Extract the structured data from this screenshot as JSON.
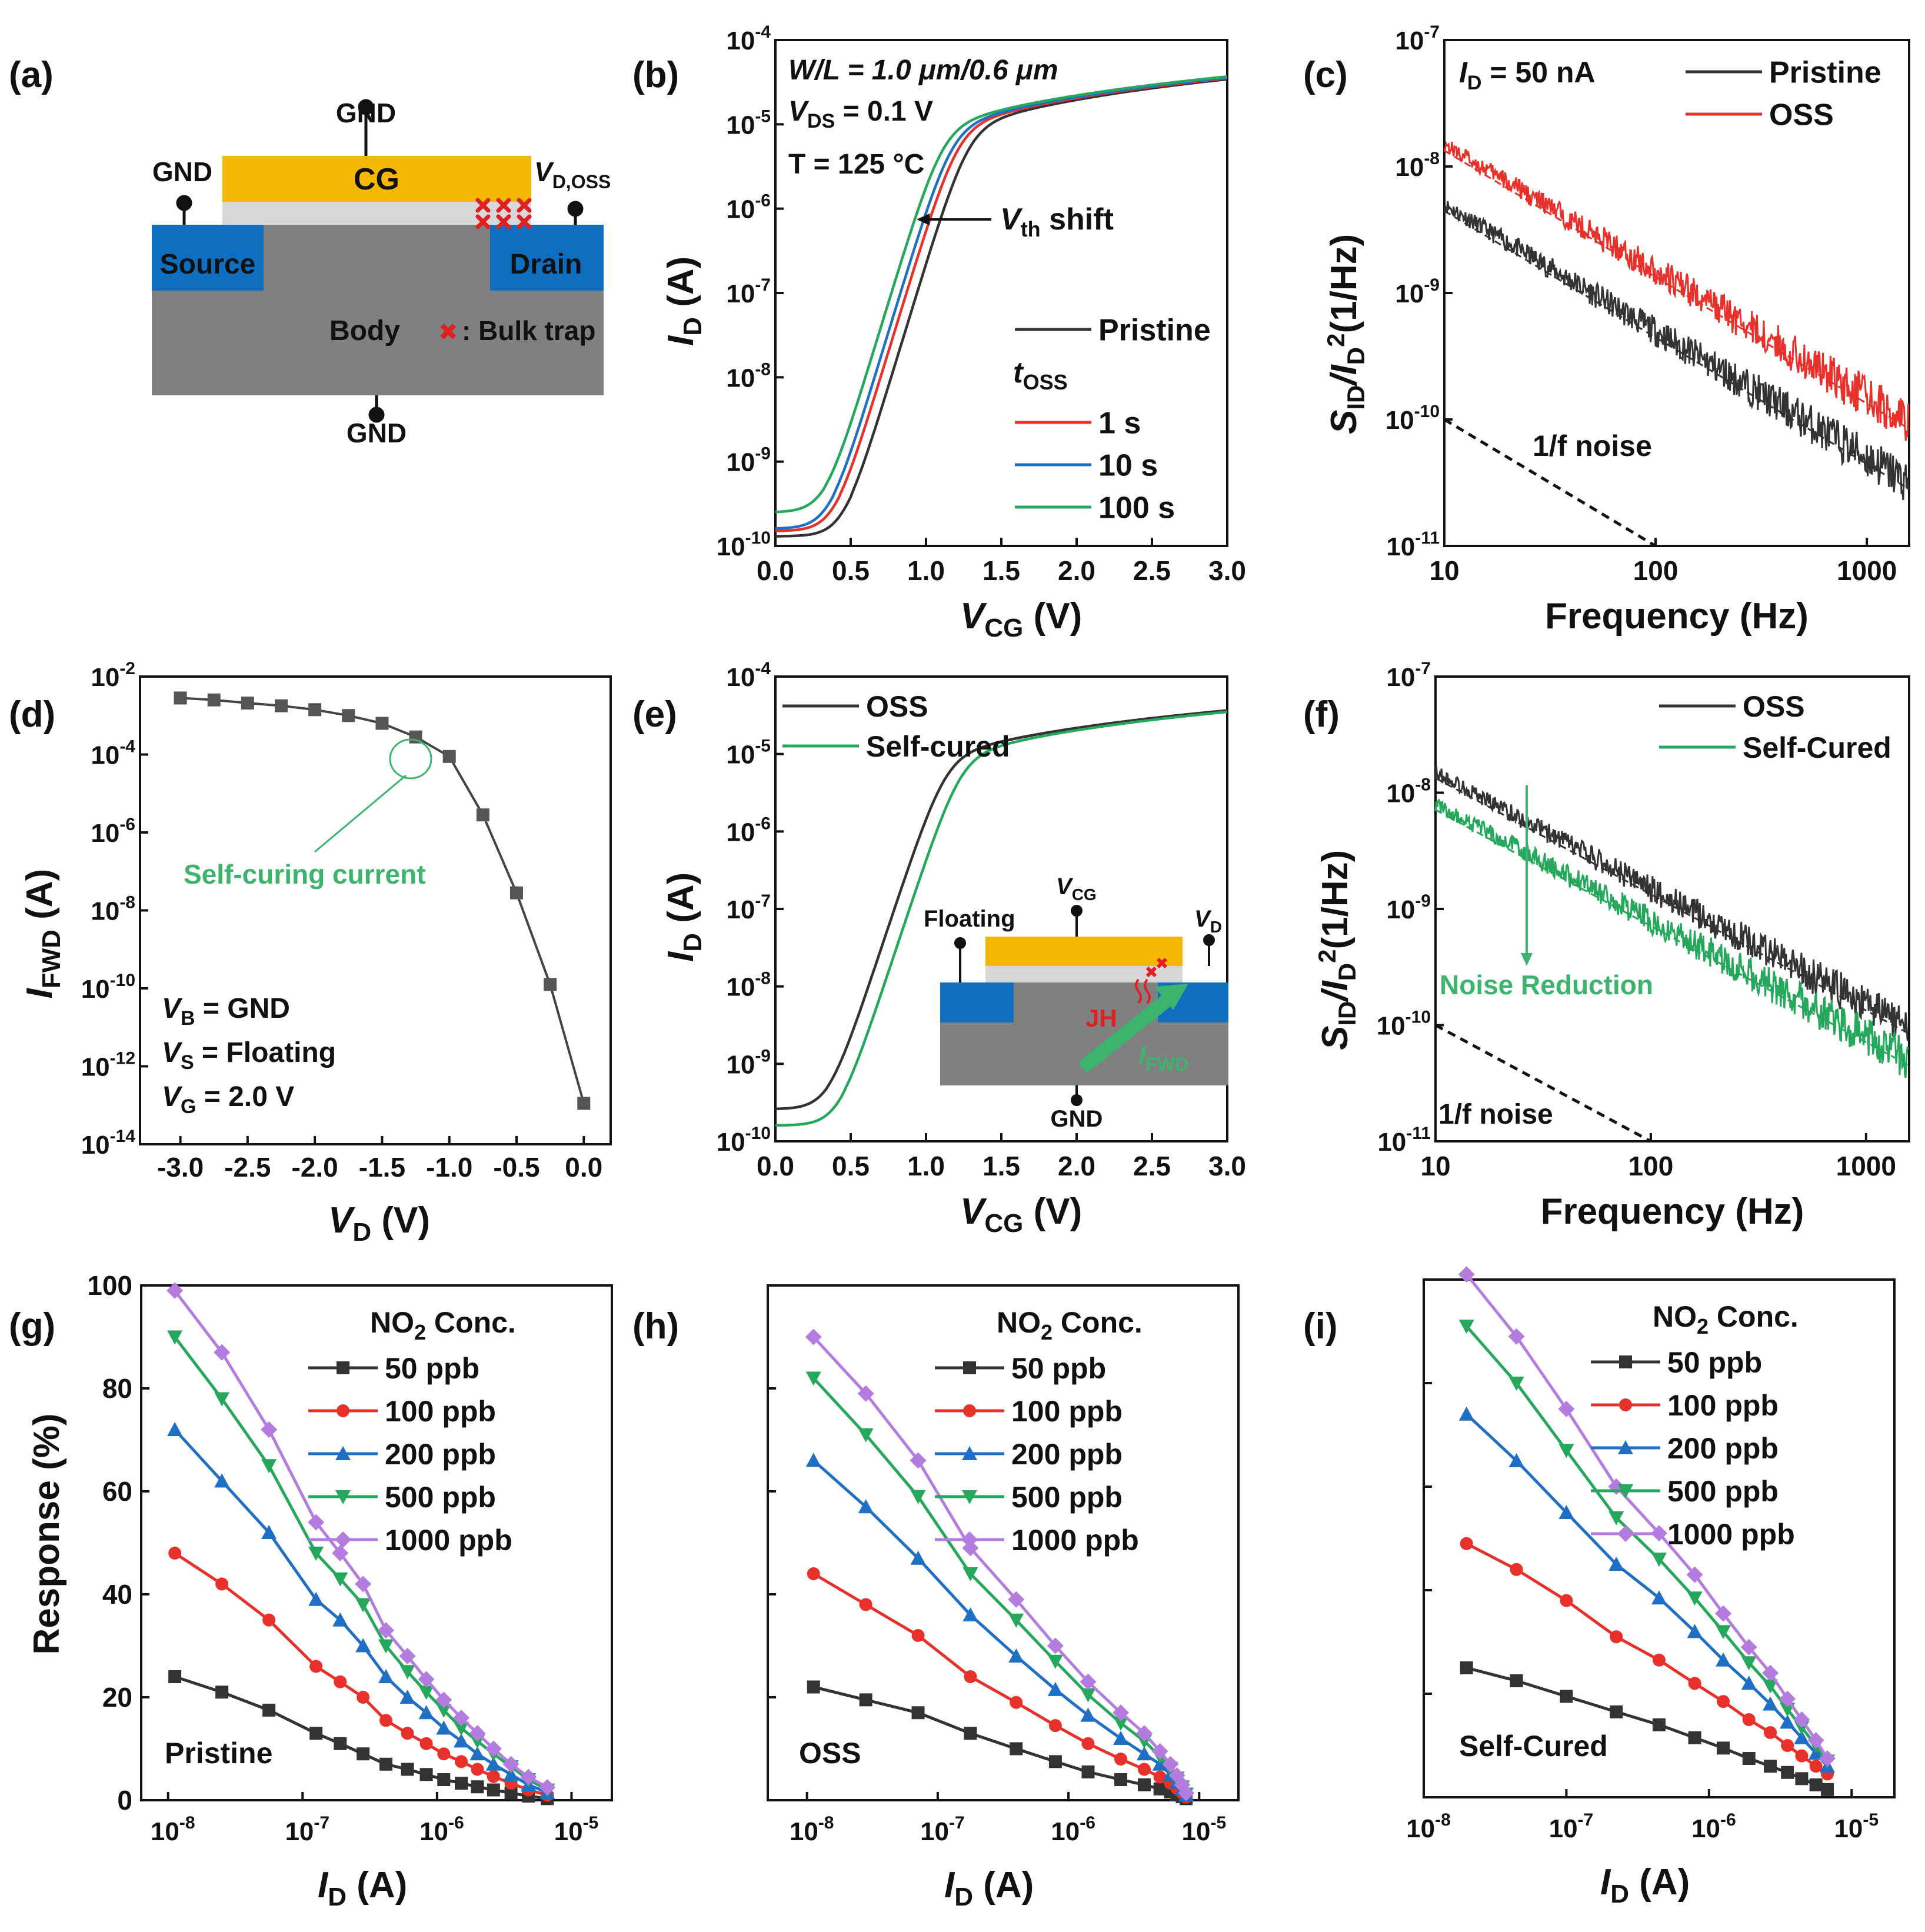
{
  "colors": {
    "black": "#333333",
    "red": "#e8312b",
    "blue": "#1f6fc5",
    "green": "#25a85b",
    "purple": "#b57ce0",
    "gate": "#f5b800",
    "source_drain": "#0e6fc1",
    "body": "#808080",
    "oxide": "#d8d8d8",
    "annot_green": "#3cb46e",
    "annot_red": "#e02020"
  },
  "labels": {
    "a": "(a)",
    "b": "(b)",
    "c": "(c)",
    "d": "(d)",
    "e": "(e)",
    "f": "(f)",
    "g": "(g)",
    "h": "(h)",
    "i": "(i)"
  },
  "panel_a": {
    "gnd_top": "GND",
    "gnd_left": "GND",
    "gnd_bottom": "GND",
    "cg": "CG",
    "vd_oss": "V",
    "vd_oss_sub": "D,OSS",
    "source": "Source",
    "drain": "Drain",
    "body": "Body",
    "trap_marker": "✖",
    "trap_label": ": Bulk trap"
  },
  "panel_e_inset": {
    "floating": "Floating",
    "vcg": "V",
    "vcg_sub": "CG",
    "vd": "V",
    "vd_sub": "D",
    "jh": "JH",
    "ifwd": "I",
    "ifwd_sub": "FWD",
    "gnd": "GND"
  },
  "chart_data": [
    {
      "id": "b",
      "type": "line",
      "xlabel": "V",
      "xlabel_sub": "CG",
      "xlabel_unit": " (V)",
      "ylabel": "I",
      "ylabel_sub": "D",
      "ylabel_unit": " (A)",
      "xlim": [
        0,
        3.0
      ],
      "ylim_log10": [
        -10,
        -4
      ],
      "xticks": [
        "0.0",
        "0.5",
        "1.0",
        "1.5",
        "2.0",
        "2.5",
        "3.0"
      ],
      "yticks": [
        "10",
        "10",
        "10",
        "10",
        "10",
        "10",
        "10"
      ],
      "ytick_exps": [
        "-10",
        "-9",
        "-8",
        "-7",
        "-6",
        "-5",
        "-4"
      ],
      "annotations": {
        "wl": "W/L = 1.0 μm/0.6 μm",
        "vds": "V",
        "vds_sub": "DS",
        "vds_val": " = 0.1 V",
        "temp": "T = 125 °C",
        "vth": "V",
        "vth_sub": "th",
        "vth_val": " shift",
        "toss": "t",
        "toss_sub": "OSS"
      },
      "series": [
        {
          "name": "Pristine",
          "vth": 0.85,
          "leak": 1.3e-10
        },
        {
          "name": "1 s",
          "vth": 0.78,
          "leak": 1.5e-10
        },
        {
          "name": "10 s",
          "vth": 0.74,
          "leak": 1.6e-10
        },
        {
          "name": "100 s",
          "vth": 0.68,
          "leak": 2.5e-10
        }
      ]
    },
    {
      "id": "c",
      "type": "line",
      "xlabel": "Frequency (Hz)",
      "ylabel": "S",
      "ylabel_sub": "ID",
      "ylabel_mid": "/I",
      "ylabel_sub2": "D",
      "ylabel_sup": "2",
      "ylabel_unit": "(1/Hz)",
      "xlim_log10": [
        1,
        3.2
      ],
      "ylim_log10": [
        -11,
        -7
      ],
      "xticks": [
        "10",
        "100",
        "1000"
      ],
      "yticks": [
        "10",
        "10",
        "10",
        "10",
        "10"
      ],
      "ytick_exps": [
        "-11",
        "-10",
        "-9",
        "-8",
        "-7"
      ],
      "annotations": {
        "id": "I",
        "id_sub": "D",
        "id_val": " = 50 nA",
        "noise": "1/f noise"
      },
      "series": [
        {
          "name": "Pristine",
          "level_at_10hz": 5e-09,
          "slope": -1
        },
        {
          "name": "OSS",
          "level_at_10hz": 1.5e-08,
          "slope": -1
        }
      ]
    },
    {
      "id": "d",
      "type": "line",
      "xlabel": "V",
      "xlabel_sub": "D",
      "xlabel_unit": " (V)",
      "ylabel": "I",
      "ylabel_sub": "FWD",
      "ylabel_unit": " (A)",
      "xlim": [
        -3.3,
        0.2
      ],
      "ylim_log10": [
        -14,
        -2
      ],
      "xticks": [
        "-3.0",
        "-2.5",
        "-2.0",
        "-1.5",
        "-1.0",
        "-0.5",
        "0.0"
      ],
      "yticks": [
        "10",
        "10",
        "10",
        "10",
        "10",
        "10",
        "10"
      ],
      "ytick_exps": [
        "-14",
        "-12",
        "-10",
        "-8",
        "-6",
        "-4",
        "-2"
      ],
      "annotations": {
        "self_curing": "Self-curing current",
        "vb": "V",
        "vb_sub": "B",
        "vb_val": " = GND",
        "vs": "V",
        "vs_sub": "S",
        "vs_val": " = Floating",
        "vg": "V",
        "vg_sub": "G",
        "vg_val": " = 2.0 V"
      },
      "x": [
        -3.0,
        -2.75,
        -2.5,
        -2.25,
        -2.0,
        -1.75,
        -1.5,
        -1.25,
        -1.0,
        -0.75,
        -0.5,
        -0.25,
        0.0
      ],
      "y_log10": [
        -2.55,
        -2.6,
        -2.68,
        -2.75,
        -2.85,
        -3.0,
        -3.2,
        -3.55,
        -4.05,
        -5.55,
        -7.55,
        -9.9,
        -12.95
      ]
    },
    {
      "id": "e",
      "type": "line",
      "xlabel": "V",
      "xlabel_sub": "CG",
      "xlabel_unit": " (V)",
      "ylabel": "I",
      "ylabel_sub": "D",
      "ylabel_unit": " (A)",
      "xlim": [
        0,
        3.0
      ],
      "ylim_log10": [
        -10,
        -4
      ],
      "xticks": [
        "0.0",
        "0.5",
        "1.0",
        "1.5",
        "2.0",
        "2.5",
        "3.0"
      ],
      "yticks": [
        "10",
        "10",
        "10",
        "10",
        "10",
        "10",
        "10"
      ],
      "ytick_exps": [
        "-10",
        "-9",
        "-8",
        "-7",
        "-6",
        "-5",
        "-4"
      ],
      "series": [
        {
          "name": "OSS",
          "vth": 0.7,
          "leak": 2.6e-10
        },
        {
          "name": "Self-cured",
          "vth": 0.8,
          "leak": 1.6e-10
        }
      ]
    },
    {
      "id": "f",
      "type": "line",
      "xlabel": "Frequency (Hz)",
      "ylabel": "S",
      "ylabel_sub": "ID",
      "ylabel_mid": "/I",
      "ylabel_sub2": "D",
      "ylabel_sup": "2",
      "ylabel_unit": "(1/Hz)",
      "xlim_log10": [
        1,
        3.2
      ],
      "ylim_log10": [
        -11,
        -7
      ],
      "xticks": [
        "10",
        "100",
        "1000"
      ],
      "yticks": [
        "10",
        "10",
        "10",
        "10",
        "10"
      ],
      "ytick_exps": [
        "-11",
        "-10",
        "-9",
        "-8",
        "-7"
      ],
      "annotations": {
        "noise_reduction": "Noise Reduction",
        "noise": "1/f noise"
      },
      "series": [
        {
          "name": "OSS",
          "level_at_10hz": 1.5e-08,
          "slope": -1
        },
        {
          "name": "Self-Cured",
          "level_at_10hz": 8e-09,
          "slope": -1
        }
      ]
    },
    {
      "id": "g",
      "type": "line",
      "label": "Pristine",
      "xlabel": "I",
      "xlabel_sub": "D",
      "xlabel_unit": " (A)",
      "ylabel": "Response (%)",
      "legend_title": "NO",
      "legend_title_sub": "2",
      "legend_title_rest": " Conc.",
      "xlim_log10": [
        -8.2,
        -4.7
      ],
      "ylim": [
        0,
        100
      ],
      "xticks": [
        "10",
        "10",
        "10",
        "10"
      ],
      "xtick_exps": [
        "-8",
        "-7",
        "-6",
        "-5"
      ],
      "yticks": [
        "0",
        "20",
        "40",
        "60",
        "80",
        "100"
      ],
      "x_log10": [
        -7.95,
        -7.6,
        -7.25,
        -6.9,
        -6.72,
        -6.55,
        -6.38,
        -6.22,
        -6.08,
        -5.95,
        -5.82,
        -5.7,
        -5.58,
        -5.45,
        -5.32,
        -5.18
      ],
      "series": [
        {
          "name": "50 ppb",
          "values": [
            24,
            21,
            17.5,
            13,
            11,
            9,
            7,
            6,
            5,
            4,
            3.3,
            2.6,
            2,
            1.4,
            0.8,
            0.3
          ]
        },
        {
          "name": "100 ppb",
          "values": [
            48,
            42,
            35,
            26,
            23,
            20,
            15.5,
            13,
            11,
            9,
            7.5,
            6,
            4.6,
            3.3,
            2,
            1
          ]
        },
        {
          "name": "200 ppb",
          "values": [
            72,
            62,
            52,
            39,
            35,
            30,
            24,
            20,
            17,
            14,
            11.5,
            9,
            7,
            5,
            3,
            1.5
          ]
        },
        {
          "name": "500 ppb",
          "values": [
            90,
            78,
            65,
            48,
            43,
            38,
            30,
            25,
            21,
            17.5,
            14,
            11.5,
            9,
            6.5,
            4,
            2
          ]
        },
        {
          "name": "1000 ppb",
          "values": [
            99,
            87,
            72,
            54,
            48,
            42,
            33,
            28,
            23.5,
            19.5,
            16,
            13,
            10,
            7,
            4.5,
            2.5
          ]
        }
      ]
    },
    {
      "id": "h",
      "type": "line",
      "label": "OSS",
      "xlabel": "I",
      "xlabel_sub": "D",
      "xlabel_unit": " (A)",
      "legend_title": "NO",
      "legend_title_sub": "2",
      "legend_title_rest": " Conc.",
      "xlim_log10": [
        -8.3,
        -4.7
      ],
      "ylim": [
        0,
        100
      ],
      "xticks": [
        "10",
        "10",
        "10",
        "10"
      ],
      "xtick_exps": [
        "-8",
        "-7",
        "-6",
        "-5"
      ],
      "x_log10": [
        -7.95,
        -7.55,
        -7.15,
        -6.75,
        -6.4,
        -6.1,
        -5.85,
        -5.6,
        -5.42,
        -5.3,
        -5.22,
        -5.17,
        -5.13,
        -5.1
      ],
      "series": [
        {
          "name": "50 ppb",
          "values": [
            22,
            19.5,
            17,
            13,
            10,
            7.5,
            5.5,
            4,
            3,
            2.2,
            1.6,
            1.1,
            0.7,
            0.3
          ]
        },
        {
          "name": "100 ppb",
          "values": [
            44,
            38,
            32,
            24,
            19,
            14.5,
            11,
            8,
            6,
            4.5,
            3.3,
            2.3,
            1.4,
            0.6
          ]
        },
        {
          "name": "200 ppb",
          "values": [
            66,
            57,
            47,
            36,
            28,
            21.5,
            16.5,
            12,
            9,
            7,
            5,
            3.5,
            2.2,
            1
          ]
        },
        {
          "name": "500 ppb",
          "values": [
            82,
            71,
            59,
            44,
            35,
            27,
            20.5,
            15,
            11.5,
            8.5,
            6.2,
            4.3,
            2.6,
            1.2
          ]
        },
        {
          "name": "1000 ppb",
          "values": [
            90,
            79,
            66,
            49,
            39,
            30,
            23,
            17,
            13,
            9.5,
            7,
            4.8,
            3,
            1.4
          ]
        }
      ]
    },
    {
      "id": "i",
      "type": "line",
      "label": "Self-Cured",
      "xlabel": "I",
      "xlabel_sub": "D",
      "xlabel_unit": " (A)",
      "legend_title": "NO",
      "legend_title_sub": "2",
      "legend_title_rest": " Conc.",
      "xlim_log10": [
        -8.0,
        -4.7
      ],
      "ylim": [
        0,
        100
      ],
      "xticks": [
        "10",
        "10",
        "10",
        "10"
      ],
      "xtick_exps": [
        "-8",
        "-7",
        "-6",
        "-5"
      ],
      "x_log10": [
        -7.7,
        -7.35,
        -7.0,
        -6.65,
        -6.35,
        -6.1,
        -5.9,
        -5.72,
        -5.57,
        -5.45,
        -5.35,
        -5.25,
        -5.17
      ],
      "series": [
        {
          "name": "50 ppb",
          "values": [
            25,
            22.5,
            19.5,
            16.5,
            14,
            11.5,
            9.5,
            7.5,
            6,
            4.8,
            3.6,
            2.4,
            1.5
          ]
        },
        {
          "name": "100 ppb",
          "values": [
            49,
            44,
            38,
            31,
            26.5,
            22,
            18.5,
            15,
            12.5,
            10,
            8,
            6,
            4.5
          ]
        },
        {
          "name": "200 ppb",
          "values": [
            74,
            65,
            55,
            45,
            38.5,
            32,
            26.5,
            22,
            18,
            14.5,
            11.5,
            8.5,
            6
          ]
        },
        {
          "name": "500 ppb",
          "values": [
            91,
            80,
            67,
            54,
            46,
            38.5,
            32,
            26,
            21.5,
            17,
            13.5,
            10,
            7
          ]
        },
        {
          "name": "1000 ppb",
          "values": [
            101,
            89,
            75,
            60,
            51,
            43,
            35.5,
            29,
            24,
            19,
            15,
            11,
            7.5
          ]
        }
      ]
    }
  ]
}
